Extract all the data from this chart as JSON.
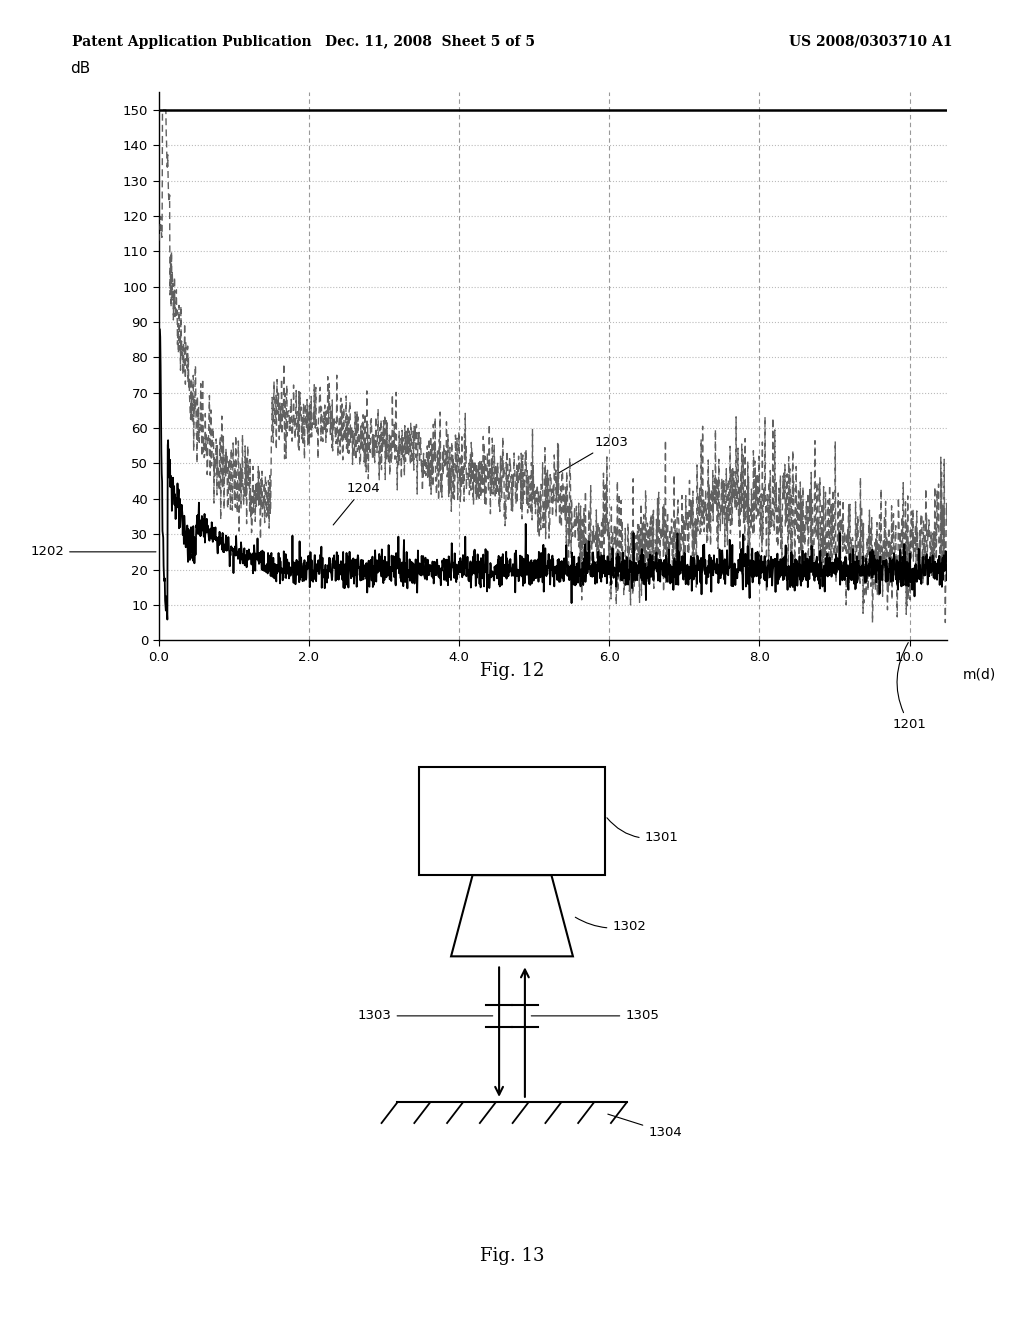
{
  "header_left": "Patent Application Publication",
  "header_center": "Dec. 11, 2008  Sheet 5 of 5",
  "header_right": "US 2008/0303710 A1",
  "fig12": {
    "title": "Fig. 12",
    "ylabel": "dB",
    "xlabel": "m(d)",
    "xlim": [
      0.0,
      10.5
    ],
    "ylim": [
      0,
      155
    ],
    "xticks": [
      0.0,
      2.0,
      4.0,
      6.0,
      8.0,
      10.0
    ],
    "yticks": [
      0,
      10,
      20,
      30,
      40,
      50,
      60,
      70,
      80,
      90,
      100,
      110,
      120,
      130,
      140,
      150
    ],
    "label_1201": "1201",
    "label_1202": "1202",
    "label_1203": "1203",
    "label_1204": "1204"
  },
  "fig13": {
    "title": "Fig. 13",
    "label_1301": "1301",
    "label_1302": "1302",
    "label_1303": "1303",
    "label_1304": "1304",
    "label_1305": "1305"
  },
  "background_color": "#ffffff",
  "line_color_solid": "#000000",
  "line_color_dashed": "#444444",
  "grid_color_h": "#bbbbbb",
  "grid_color_v": "#999999",
  "text_color": "#000000"
}
